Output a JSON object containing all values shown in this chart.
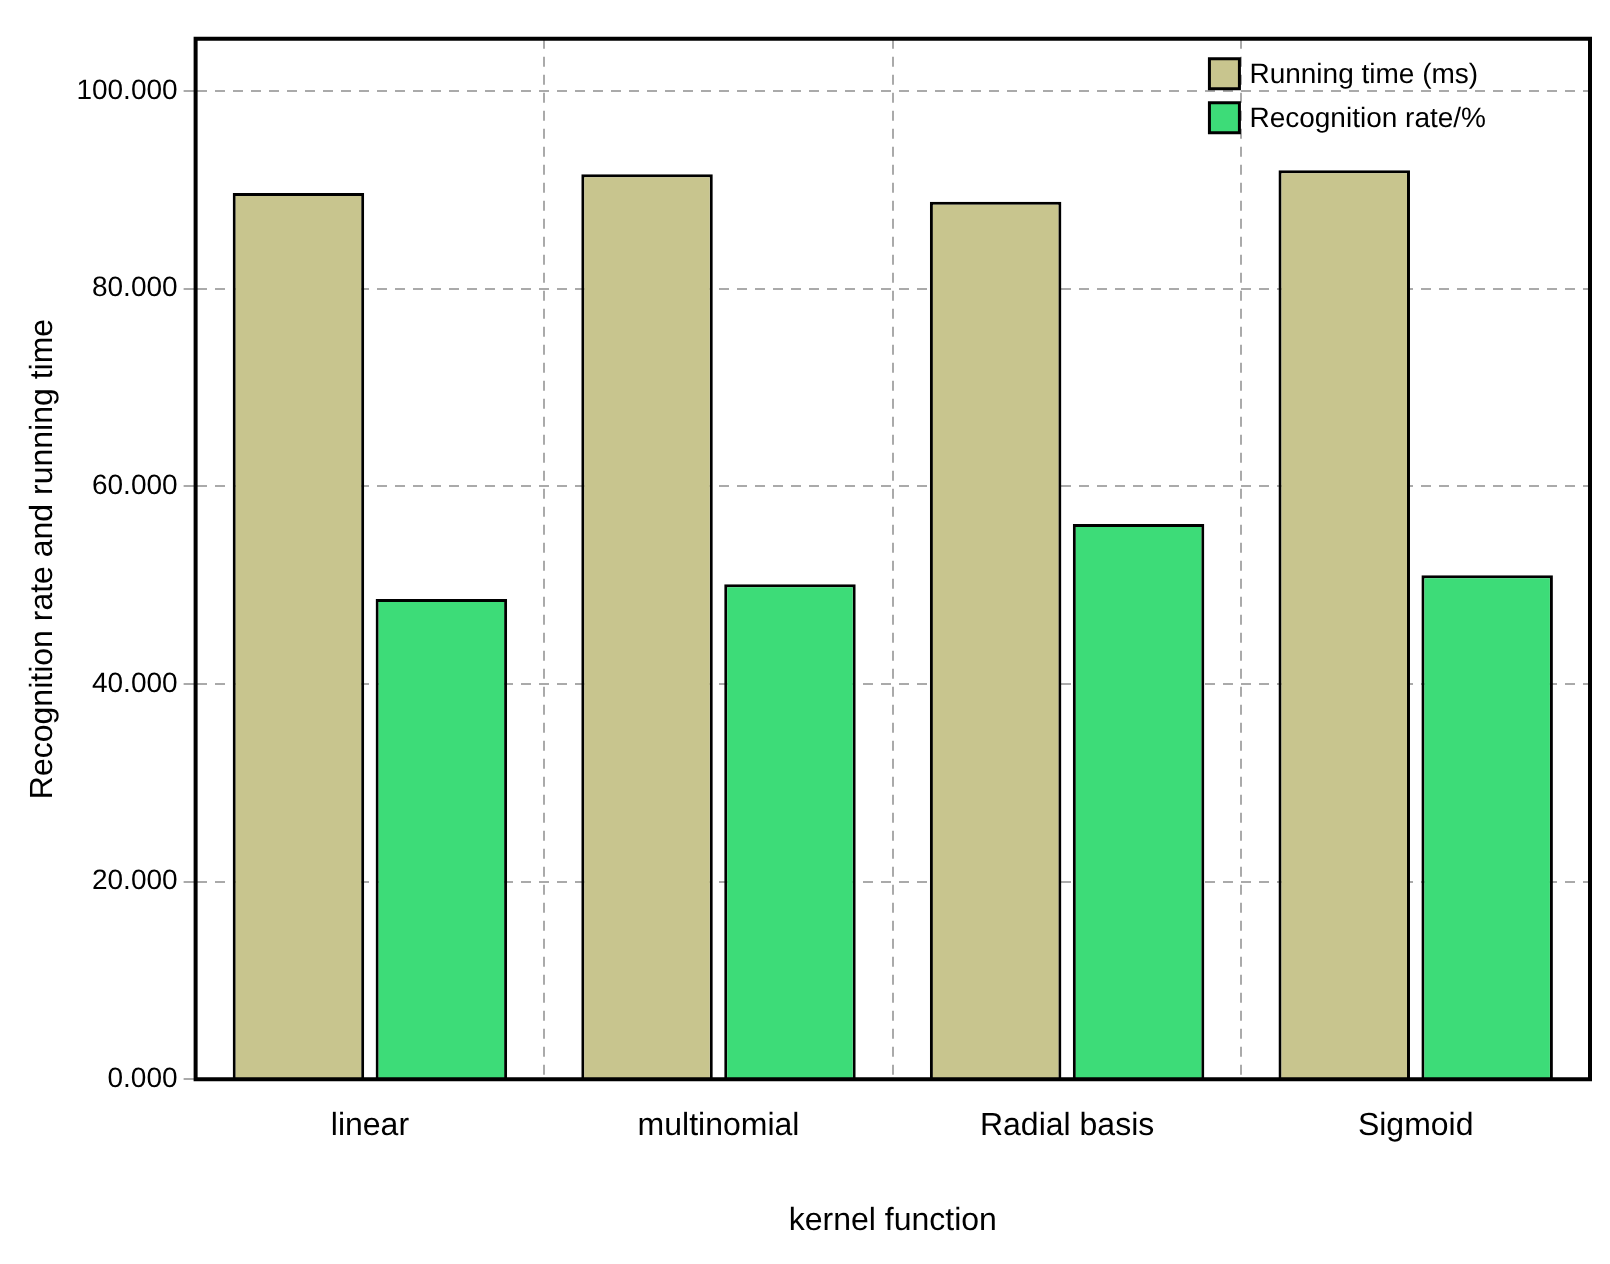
{
  "chart_data": {
    "type": "bar",
    "xlabel": "kernel function",
    "ylabel": "Recognition rate and running time",
    "categories": [
      "linear",
      "multinomial",
      "Radial basis",
      "Sigmoid"
    ],
    "series": [
      {
        "name": "Running time (ms)",
        "color": "#c8c58e",
        "values": [
          89.7,
          91.6,
          88.8,
          92.0
        ]
      },
      {
        "name": "Recognition rate/%",
        "color": "#3ddc78",
        "values": [
          48.6,
          50.1,
          56.2,
          51.0
        ]
      }
    ],
    "ylim": [
      0,
      105.3
    ],
    "yticks": [
      {
        "value": 0,
        "label": "0.000"
      },
      {
        "value": 20,
        "label": "20.000"
      },
      {
        "value": 40,
        "label": "40.000"
      },
      {
        "value": 60,
        "label": "60.000"
      },
      {
        "value": 80,
        "label": "80.000"
      },
      {
        "value": 100,
        "label": "100.000"
      }
    ],
    "grid": true,
    "legend": "top right"
  }
}
